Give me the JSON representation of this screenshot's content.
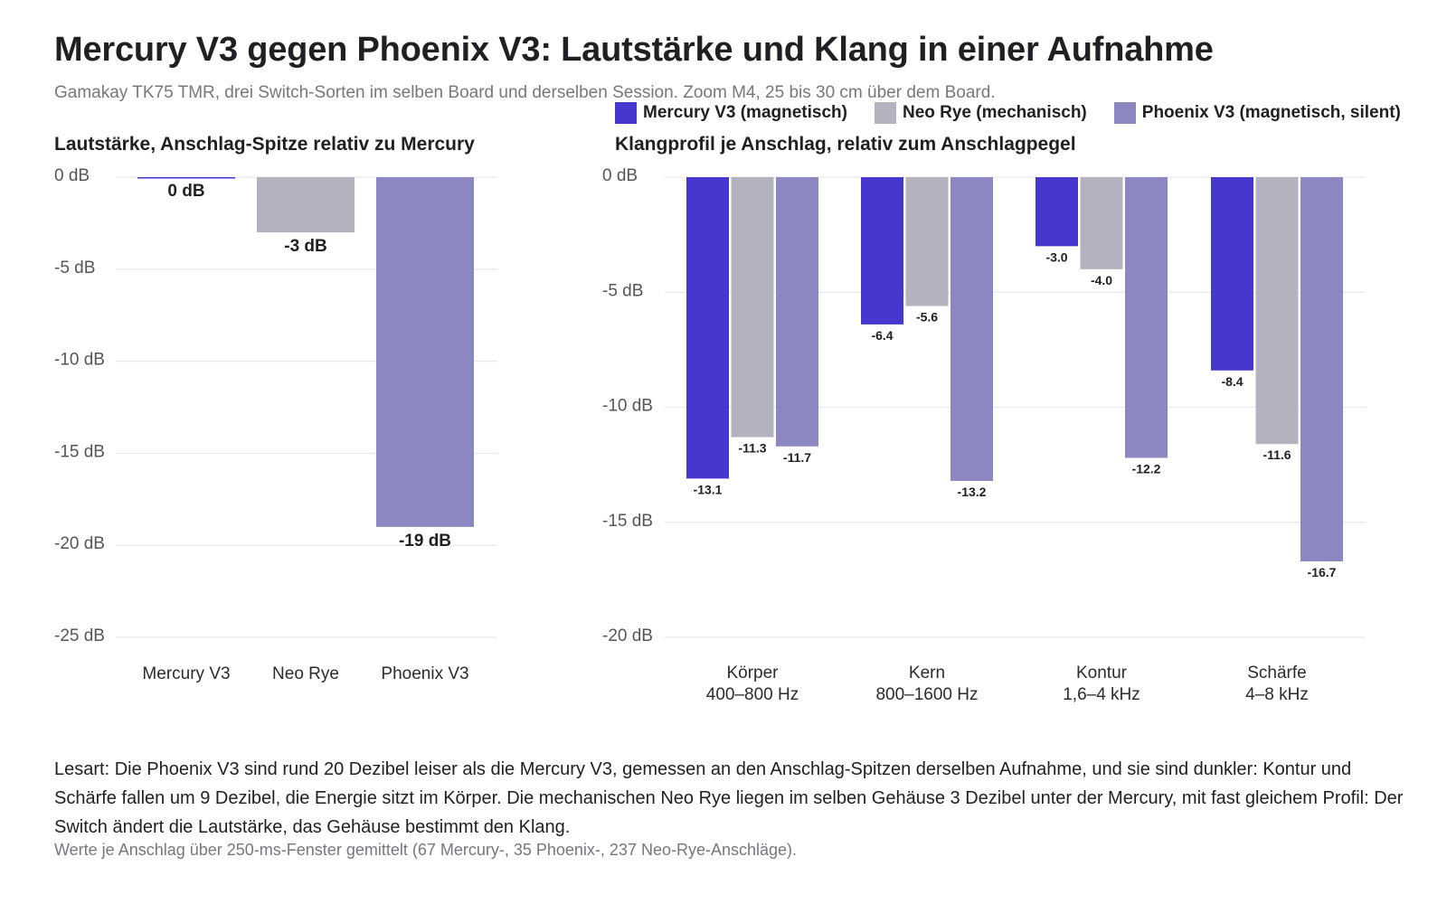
{
  "header": {
    "title": "Mercury V3 gegen Phoenix V3: Lautstärke und Klang in einer Aufnahme",
    "subtitle": "Gamakay TK75 TMR, drei Switch-Sorten im selben Board und derselben Session. Zoom M4, 25 bis 30 cm über dem Board."
  },
  "legend": [
    {
      "label": "Mercury V3 (magnetisch)",
      "color": "#4638cf"
    },
    {
      "label": "Neo Rye (mechanisch)",
      "color": "#b3b3bf"
    },
    {
      "label": "Phoenix V3 (magnetisch, silent)",
      "color": "#8b87c0"
    }
  ],
  "chart_data": [
    {
      "type": "bar",
      "title": "Lautstärke, Anschlag-Spitze relativ zu Mercury",
      "ylim": [
        -25,
        0
      ],
      "yticks": [
        0,
        -5,
        -10,
        -15,
        -20,
        -25
      ],
      "ytick_labels": [
        "0 dB",
        "-5 dB",
        "-10 dB",
        "-15 dB",
        "-20 dB",
        "-25 dB"
      ],
      "grid": true,
      "categories": [
        "Mercury V3",
        "Neo Rye",
        "Phoenix V3"
      ],
      "values": [
        0,
        -3,
        -19
      ],
      "value_labels": [
        "0 dB",
        "-3 dB",
        "-19 dB"
      ],
      "colors": [
        "#4638cf",
        "#b3b3bf",
        "#8b87c0"
      ]
    },
    {
      "type": "bar",
      "title": "Klangprofil je Anschlag, relativ zum Anschlagpegel",
      "ylim": [
        -20,
        0
      ],
      "yticks": [
        0,
        -5,
        -10,
        -15,
        -20
      ],
      "ytick_labels": [
        "0 dB",
        "-5 dB",
        "-10 dB",
        "-15 dB",
        "-20 dB"
      ],
      "grid": true,
      "categories": [
        [
          "Körper",
          "400–800 Hz"
        ],
        [
          "Kern",
          "800–1600 Hz"
        ],
        [
          "Kontur",
          "1,6–4 kHz"
        ],
        [
          "Schärfe",
          "4–8 kHz"
        ]
      ],
      "series": [
        {
          "name": "Mercury V3 (magnetisch)",
          "color": "#4638cf",
          "values": [
            -13.1,
            -6.4,
            -3.0,
            -8.4
          ],
          "labels": [
            "-13.1",
            "-6.4",
            "-3.0",
            "-8.4"
          ]
        },
        {
          "name": "Neo Rye (mechanisch)",
          "color": "#b3b3bf",
          "values": [
            -11.3,
            -5.6,
            -4.0,
            -11.6
          ],
          "labels": [
            "-11.3",
            "-5.6",
            "-4.0",
            "-11.6"
          ]
        },
        {
          "name": "Phoenix V3 (magnetisch, silent)",
          "color": "#8b87c0",
          "values": [
            -11.7,
            -13.2,
            -12.2,
            -16.7
          ],
          "labels": [
            "-11.7",
            "-13.2",
            "-12.2",
            "-16.7"
          ]
        }
      ]
    }
  ],
  "note": {
    "text": "Lesart: Die Phoenix V3 sind rund 20 Dezibel leiser als die Mercury V3, gemessen an den Anschlag-Spitzen derselben Aufnahme, und sie sind dunkler: Kontur und Schärfe fallen um 9 Dezibel, die Energie sitzt im Körper. Die mechanischen Neo Rye liegen im selben Gehäuse 3 Dezibel unter der Mercury, mit fast gleichem Profil: Der Switch ändert die Lautstärke, das Gehäuse bestimmt den Klang.",
    "footnote": "Werte je Anschlag über 250-ms-Fenster gemittelt (67 Mercury-, 35 Phoenix-, 237 Neo-Rye-Anschläge)."
  }
}
